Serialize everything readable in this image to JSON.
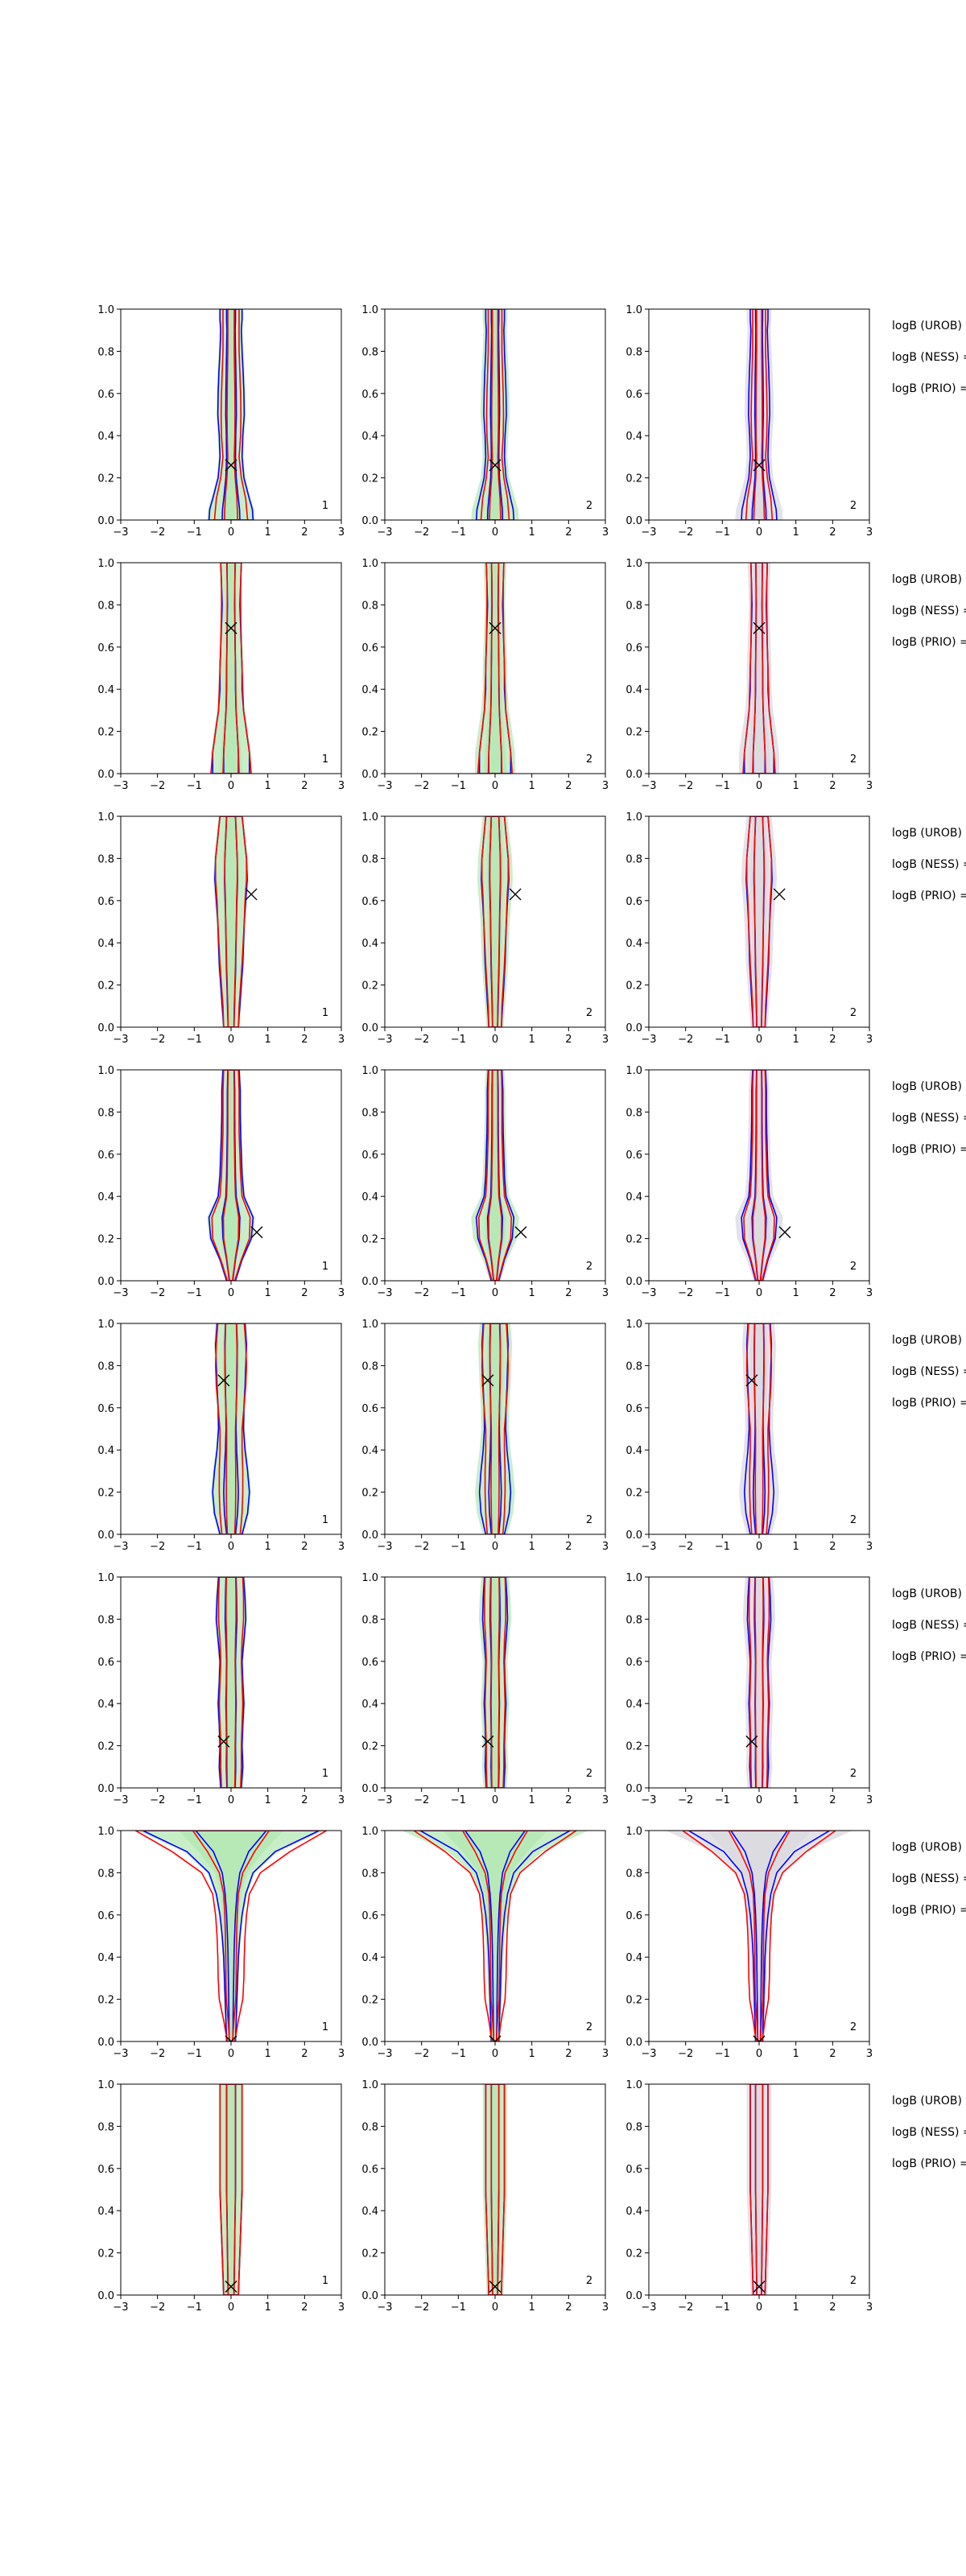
{
  "figure": {
    "side_labels": [
      "logB (UROB) =",
      "logB (NESS) =",
      "logB (PRIO) ="
    ]
  },
  "chart_data": {
    "type": "area",
    "grid": false,
    "xlim": [
      -3,
      3
    ],
    "ylim": [
      0,
      1
    ],
    "xticks": [
      -3,
      -2,
      -1,
      0,
      1,
      2,
      3
    ],
    "yticks": [
      0.0,
      0.2,
      0.4,
      0.6,
      0.8,
      1.0
    ],
    "xtick_labels": [
      "−3",
      "−2",
      "−1",
      "0",
      "1",
      "2",
      "3"
    ],
    "ytick_labels": [
      "0.0",
      "0.2",
      "0.4",
      "0.6",
      "0.8",
      "1.0"
    ],
    "colors": {
      "blue_contour": "#0000ff",
      "red_contour": "#ff0000",
      "green_fill": "#b5e8b5",
      "grey_fill": "#d9d9df",
      "marker": "#000000"
    },
    "columns": [
      {
        "tag": "1",
        "fill": "green"
      },
      {
        "tag": "2",
        "fill": "green"
      },
      {
        "tag": "2",
        "fill": "grey"
      }
    ],
    "rows": [
      {
        "marker": [
          0.0,
          0.26
        ],
        "blue": [
          [
            0.0,
            0.6
          ],
          [
            0.05,
            0.58
          ],
          [
            0.1,
            0.5
          ],
          [
            0.2,
            0.35
          ],
          [
            0.3,
            0.3
          ],
          [
            0.4,
            0.32
          ],
          [
            0.5,
            0.36
          ],
          [
            0.6,
            0.35
          ],
          [
            0.7,
            0.33
          ],
          [
            0.8,
            0.3
          ],
          [
            0.9,
            0.28
          ],
          [
            0.95,
            0.3
          ],
          [
            1.0,
            0.3
          ]
        ],
        "red": [
          [
            0.0,
            0.45
          ],
          [
            0.1,
            0.4
          ],
          [
            0.2,
            0.28
          ],
          [
            0.3,
            0.22
          ],
          [
            0.4,
            0.26
          ],
          [
            0.5,
            0.27
          ],
          [
            0.6,
            0.26
          ],
          [
            0.7,
            0.24
          ],
          [
            0.8,
            0.22
          ],
          [
            0.9,
            0.22
          ],
          [
            1.0,
            0.22
          ]
        ]
      },
      {
        "marker": [
          0.0,
          0.69
        ],
        "blue": [
          [
            0.0,
            0.5
          ],
          [
            0.1,
            0.5
          ],
          [
            0.2,
            0.42
          ],
          [
            0.3,
            0.34
          ],
          [
            0.4,
            0.3
          ],
          [
            0.5,
            0.3
          ],
          [
            0.6,
            0.28
          ],
          [
            0.7,
            0.26
          ],
          [
            0.8,
            0.24
          ],
          [
            0.9,
            0.26
          ],
          [
            1.0,
            0.28
          ]
        ],
        "red": [
          [
            0.0,
            0.55
          ],
          [
            0.1,
            0.5
          ],
          [
            0.2,
            0.42
          ],
          [
            0.3,
            0.34
          ],
          [
            0.4,
            0.32
          ],
          [
            0.5,
            0.3
          ],
          [
            0.6,
            0.28
          ],
          [
            0.7,
            0.27
          ],
          [
            0.8,
            0.26
          ],
          [
            0.9,
            0.26
          ],
          [
            1.0,
            0.28
          ]
        ]
      },
      {
        "marker": [
          0.55,
          0.63
        ],
        "blue": [
          [
            0.0,
            0.2
          ],
          [
            0.1,
            0.24
          ],
          [
            0.2,
            0.28
          ],
          [
            0.3,
            0.32
          ],
          [
            0.4,
            0.34
          ],
          [
            0.5,
            0.36
          ],
          [
            0.6,
            0.4
          ],
          [
            0.7,
            0.44
          ],
          [
            0.8,
            0.42
          ],
          [
            0.9,
            0.36
          ],
          [
            1.0,
            0.3
          ]
        ],
        "red": [
          [
            0.0,
            0.2
          ],
          [
            0.1,
            0.22
          ],
          [
            0.2,
            0.26
          ],
          [
            0.3,
            0.3
          ],
          [
            0.4,
            0.33
          ],
          [
            0.5,
            0.36
          ],
          [
            0.6,
            0.38
          ],
          [
            0.7,
            0.42
          ],
          [
            0.8,
            0.42
          ],
          [
            0.9,
            0.36
          ],
          [
            1.0,
            0.3
          ]
        ]
      },
      {
        "marker": [
          0.7,
          0.23
        ],
        "blue": [
          [
            0.0,
            0.12
          ],
          [
            0.1,
            0.3
          ],
          [
            0.2,
            0.55
          ],
          [
            0.3,
            0.6
          ],
          [
            0.4,
            0.35
          ],
          [
            0.5,
            0.3
          ],
          [
            0.6,
            0.28
          ],
          [
            0.7,
            0.26
          ],
          [
            0.8,
            0.25
          ],
          [
            0.9,
            0.25
          ],
          [
            1.0,
            0.22
          ]
        ],
        "red": [
          [
            0.0,
            0.1
          ],
          [
            0.1,
            0.28
          ],
          [
            0.2,
            0.5
          ],
          [
            0.3,
            0.52
          ],
          [
            0.4,
            0.3
          ],
          [
            0.5,
            0.26
          ],
          [
            0.6,
            0.24
          ],
          [
            0.7,
            0.22
          ],
          [
            0.8,
            0.22
          ],
          [
            0.9,
            0.22
          ],
          [
            1.0,
            0.2
          ]
        ]
      },
      {
        "marker": [
          -0.2,
          0.73
        ],
        "blue": [
          [
            0.0,
            0.3
          ],
          [
            0.1,
            0.45
          ],
          [
            0.2,
            0.5
          ],
          [
            0.3,
            0.45
          ],
          [
            0.4,
            0.38
          ],
          [
            0.5,
            0.34
          ],
          [
            0.6,
            0.35
          ],
          [
            0.7,
            0.38
          ],
          [
            0.8,
            0.4
          ],
          [
            0.9,
            0.42
          ],
          [
            1.0,
            0.38
          ]
        ],
        "red": [
          [
            0.0,
            0.25
          ],
          [
            0.1,
            0.3
          ],
          [
            0.2,
            0.32
          ],
          [
            0.3,
            0.32
          ],
          [
            0.4,
            0.3
          ],
          [
            0.5,
            0.3
          ],
          [
            0.6,
            0.35
          ],
          [
            0.7,
            0.4
          ],
          [
            0.8,
            0.42
          ],
          [
            0.9,
            0.4
          ],
          [
            1.0,
            0.36
          ]
        ]
      },
      {
        "marker": [
          -0.2,
          0.22
        ],
        "blue": [
          [
            0.0,
            0.28
          ],
          [
            0.1,
            0.32
          ],
          [
            0.2,
            0.3
          ],
          [
            0.3,
            0.32
          ],
          [
            0.4,
            0.35
          ],
          [
            0.5,
            0.32
          ],
          [
            0.6,
            0.3
          ],
          [
            0.7,
            0.35
          ],
          [
            0.8,
            0.4
          ],
          [
            0.9,
            0.38
          ],
          [
            1.0,
            0.34
          ]
        ],
        "red": [
          [
            0.0,
            0.26
          ],
          [
            0.1,
            0.28
          ],
          [
            0.2,
            0.28
          ],
          [
            0.3,
            0.3
          ],
          [
            0.4,
            0.32
          ],
          [
            0.5,
            0.3
          ],
          [
            0.6,
            0.28
          ],
          [
            0.7,
            0.3
          ],
          [
            0.8,
            0.34
          ],
          [
            0.9,
            0.34
          ],
          [
            1.0,
            0.32
          ]
        ]
      },
      {
        "marker": [
          0.0,
          0.0
        ],
        "blue": [
          [
            0.0,
            0.12
          ],
          [
            0.1,
            0.14
          ],
          [
            0.2,
            0.16
          ],
          [
            0.3,
            0.18
          ],
          [
            0.4,
            0.2
          ],
          [
            0.5,
            0.24
          ],
          [
            0.6,
            0.3
          ],
          [
            0.7,
            0.4
          ],
          [
            0.8,
            0.6
          ],
          [
            0.9,
            1.2
          ],
          [
            1.0,
            2.4
          ]
        ],
        "red": [
          [
            0.0,
            0.1
          ],
          [
            0.1,
            0.2
          ],
          [
            0.2,
            0.32
          ],
          [
            0.3,
            0.35
          ],
          [
            0.4,
            0.36
          ],
          [
            0.5,
            0.38
          ],
          [
            0.6,
            0.42
          ],
          [
            0.7,
            0.5
          ],
          [
            0.8,
            0.8
          ],
          [
            0.9,
            1.6
          ],
          [
            1.0,
            2.6
          ]
        ]
      },
      {
        "marker": [
          0.0,
          0.04
        ],
        "blue": [
          [
            0.0,
            0.2
          ],
          [
            0.1,
            0.22
          ],
          [
            0.2,
            0.24
          ],
          [
            0.3,
            0.26
          ],
          [
            0.4,
            0.28
          ],
          [
            0.5,
            0.3
          ],
          [
            0.6,
            0.3
          ],
          [
            0.7,
            0.3
          ],
          [
            0.8,
            0.3
          ],
          [
            0.9,
            0.3
          ],
          [
            1.0,
            0.3
          ]
        ],
        "red": [
          [
            0.0,
            0.2
          ],
          [
            0.1,
            0.22
          ],
          [
            0.2,
            0.24
          ],
          [
            0.3,
            0.26
          ],
          [
            0.4,
            0.28
          ],
          [
            0.5,
            0.3
          ],
          [
            0.6,
            0.3
          ],
          [
            0.7,
            0.3
          ],
          [
            0.8,
            0.3
          ],
          [
            0.9,
            0.3
          ],
          [
            1.0,
            0.3
          ]
        ]
      }
    ]
  }
}
